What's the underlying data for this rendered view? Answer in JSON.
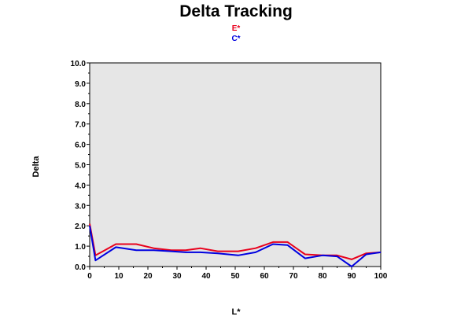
{
  "chart_data": {
    "type": "line",
    "title": "Delta Tracking",
    "xlabel": "L*",
    "ylabel": "Delta",
    "xlim": [
      0,
      100
    ],
    "ylim": [
      0,
      10
    ],
    "xticks": [
      0,
      10,
      20,
      30,
      40,
      50,
      60,
      70,
      80,
      90,
      100
    ],
    "yticks": [
      0,
      1,
      2,
      3,
      4,
      5,
      6,
      7,
      8,
      9,
      10
    ],
    "xtick_labels": [
      "0",
      "10",
      "20",
      "30",
      "40",
      "50",
      "60",
      "70",
      "80",
      "90",
      "100"
    ],
    "ytick_labels": [
      "0.0",
      "1.0",
      "2.0",
      "3.0",
      "4.0",
      "5.0",
      "6.0",
      "7.0",
      "8.0",
      "9.0",
      "10.0"
    ],
    "grid": false,
    "plot_background": "#e6e6e6",
    "legend_position": "top-center",
    "series": [
      {
        "name": "E*",
        "color": "#e8001c",
        "x": [
          0,
          2,
          9,
          16,
          22,
          28,
          33,
          38,
          44,
          51,
          57,
          63,
          68,
          74,
          80,
          85,
          90,
          95,
          100
        ],
        "y": [
          2.1,
          0.55,
          1.1,
          1.1,
          0.9,
          0.8,
          0.8,
          0.9,
          0.75,
          0.75,
          0.9,
          1.2,
          1.2,
          0.6,
          0.55,
          0.55,
          0.35,
          0.65,
          0.7
        ]
      },
      {
        "name": "C*",
        "color": "#0000e0",
        "x": [
          0,
          2,
          9,
          16,
          22,
          28,
          33,
          38,
          44,
          51,
          57,
          63,
          68,
          74,
          80,
          85,
          90,
          95,
          100
        ],
        "y": [
          2.0,
          0.3,
          0.95,
          0.8,
          0.8,
          0.75,
          0.7,
          0.7,
          0.65,
          0.55,
          0.7,
          1.1,
          1.05,
          0.4,
          0.55,
          0.5,
          0.0,
          0.6,
          0.7
        ]
      }
    ]
  }
}
